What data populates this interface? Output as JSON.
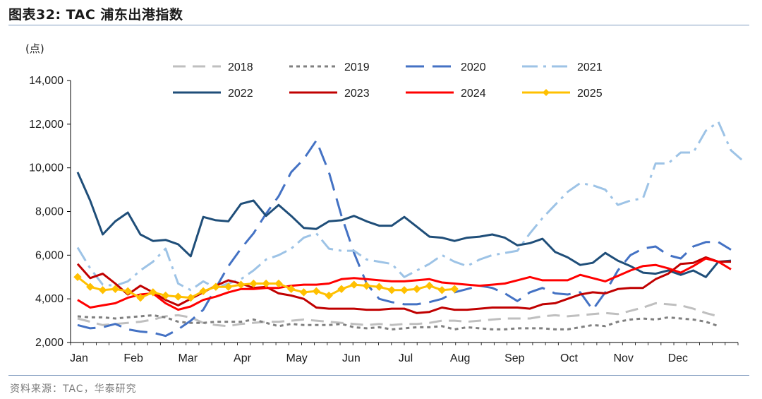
{
  "header": {
    "title": "图表32:  TAC 浦东出港指数",
    "source": "资料来源：TAC，华泰研究"
  },
  "chart_data": {
    "type": "line",
    "title": "TAC 浦东出港指数",
    "ylabel": "(点)",
    "ylim": [
      2000,
      14000
    ],
    "yticks": [
      2000,
      4000,
      6000,
      8000,
      10000,
      12000,
      14000
    ],
    "ytick_labels": [
      "2,000",
      "4,000",
      "6,000",
      "8,000",
      "10,000",
      "12,000",
      "14,000"
    ],
    "months": [
      "Jan",
      "Feb",
      "Mar",
      "Apr",
      "May",
      "Jun",
      "Jul",
      "Aug",
      "Sep",
      "Oct",
      "Nov",
      "Dec"
    ],
    "weeks_per_year": 52,
    "legend_position": "top",
    "series": [
      {
        "name": "2018",
        "color": "#bfbfbf",
        "style": "dash",
        "values": [
          3100,
          2950,
          2800,
          2850,
          2900,
          2950,
          3050,
          3200,
          3250,
          3150,
          2900,
          2800,
          2750,
          2850,
          2900,
          2950,
          2950,
          3000,
          3050,
          3000,
          2950,
          2900,
          2850,
          2800,
          2850,
          2800,
          2850,
          2850,
          2900,
          3000,
          3000,
          2950,
          3000,
          3050,
          3100,
          3100,
          3100,
          3200,
          3250,
          3200,
          3250,
          3300,
          3350,
          3300,
          3450,
          3600,
          3800,
          3750,
          3700,
          3550,
          3350,
          3200
        ]
      },
      {
        "name": "2019",
        "color": "#808080",
        "style": "dot",
        "values": [
          3200,
          3150,
          3150,
          3100,
          3150,
          3200,
          3250,
          3150,
          2950,
          2900,
          2900,
          2950,
          2950,
          2950,
          3050,
          2900,
          2750,
          2850,
          2800,
          2800,
          2800,
          2850,
          2700,
          2650,
          2700,
          2600,
          2650,
          2700,
          2700,
          2750,
          2600,
          2700,
          2650,
          2600,
          2600,
          2650,
          2650,
          2650,
          2600,
          2600,
          2700,
          2800,
          2750,
          2950,
          3050,
          3100,
          3050,
          3150,
          3100,
          3050,
          2950,
          2750
        ]
      },
      {
        "name": "2020",
        "color": "#4472c4",
        "style": "longdash",
        "values": [
          2800,
          2650,
          2700,
          2850,
          2600,
          2500,
          2450,
          2300,
          2600,
          3000,
          3500,
          4500,
          5500,
          6300,
          7000,
          7900,
          8700,
          9800,
          10400,
          11250,
          9800,
          7800,
          6100,
          4700,
          4000,
          3850,
          3750,
          3750,
          3850,
          4000,
          4300,
          4450,
          4600,
          4500,
          4250,
          3900,
          4300,
          4500,
          4250,
          4200,
          4300,
          3500,
          4300,
          5300,
          6000,
          6300,
          6400,
          6000,
          5850,
          6400,
          6600,
          6600,
          6250
        ]
      },
      {
        "name": "2021",
        "color": "#9dc3e6",
        "style": "dashdot",
        "values": [
          6350,
          5400,
          4650,
          4600,
          4800,
          5300,
          5700,
          6300,
          4700,
          4400,
          4800,
          4500,
          4700,
          4900,
          5300,
          5800,
          6000,
          6300,
          6800,
          7000,
          6300,
          6200,
          6200,
          5800,
          5700,
          5600,
          5000,
          5300,
          5600,
          6000,
          5700,
          5500,
          5800,
          6000,
          6100,
          6200,
          7000,
          7700,
          8300,
          8900,
          9300,
          9200,
          9000,
          8300,
          8500,
          8600,
          10200,
          10200,
          10700,
          10700,
          11700,
          12100,
          10800,
          10300
        ]
      },
      {
        "name": "2022",
        "color": "#1f4e79",
        "style": "solid",
        "values": [
          9800,
          8500,
          6950,
          7550,
          7950,
          6950,
          6650,
          6700,
          6500,
          5950,
          7750,
          7600,
          7550,
          8350,
          8500,
          7800,
          8300,
          7800,
          7250,
          7200,
          7550,
          7600,
          7800,
          7550,
          7350,
          7350,
          7750,
          7300,
          6850,
          6800,
          6650,
          6800,
          6850,
          6950,
          6800,
          6450,
          6550,
          6750,
          6150,
          5900,
          5550,
          5650,
          6100,
          5750,
          5500,
          5200,
          5150,
          5300,
          5100,
          5300,
          5000,
          5700,
          5750
        ]
      },
      {
        "name": "2023",
        "color": "#c00000",
        "style": "solid",
        "values": [
          5600,
          4950,
          5150,
          4700,
          4200,
          4600,
          4300,
          3950,
          3700,
          4000,
          4300,
          4600,
          4850,
          4700,
          4500,
          4550,
          4250,
          4150,
          4000,
          3600,
          3550,
          3550,
          3550,
          3500,
          3500,
          3550,
          3550,
          3350,
          3400,
          3600,
          3500,
          3500,
          3550,
          3600,
          3600,
          3600,
          3550,
          3750,
          3800,
          4000,
          4200,
          4300,
          4250,
          4450,
          4500,
          4500,
          4900,
          5150,
          5600,
          5650,
          5900,
          5700,
          5700
        ]
      },
      {
        "name": "2024",
        "color": "#ff0000",
        "style": "solid",
        "values": [
          3950,
          3600,
          3700,
          3800,
          4050,
          4200,
          4250,
          3800,
          3500,
          3650,
          3950,
          4100,
          4300,
          4450,
          4450,
          4500,
          4500,
          4600,
          4650,
          4650,
          4700,
          4900,
          4950,
          4900,
          4850,
          4800,
          4800,
          4850,
          4900,
          4750,
          4700,
          4650,
          4600,
          4650,
          4700,
          4850,
          5000,
          4850,
          4850,
          4850,
          5100,
          4950,
          4800,
          5050,
          5300,
          5500,
          5550,
          5400,
          5200,
          5500,
          5850,
          5700,
          5350
        ]
      },
      {
        "name": "2025",
        "color": "#ffc000",
        "style": "marker",
        "values": [
          5000,
          4550,
          4400,
          4450,
          4350,
          4050,
          4300,
          4150,
          4100,
          4050,
          4350,
          4550,
          4550,
          4650,
          4700,
          4700,
          4700,
          4450,
          4300,
          4350,
          4150,
          4450,
          4650,
          4600,
          4550,
          4400,
          4400,
          4450,
          4600,
          4400,
          4450
        ]
      }
    ],
    "grid": false
  }
}
